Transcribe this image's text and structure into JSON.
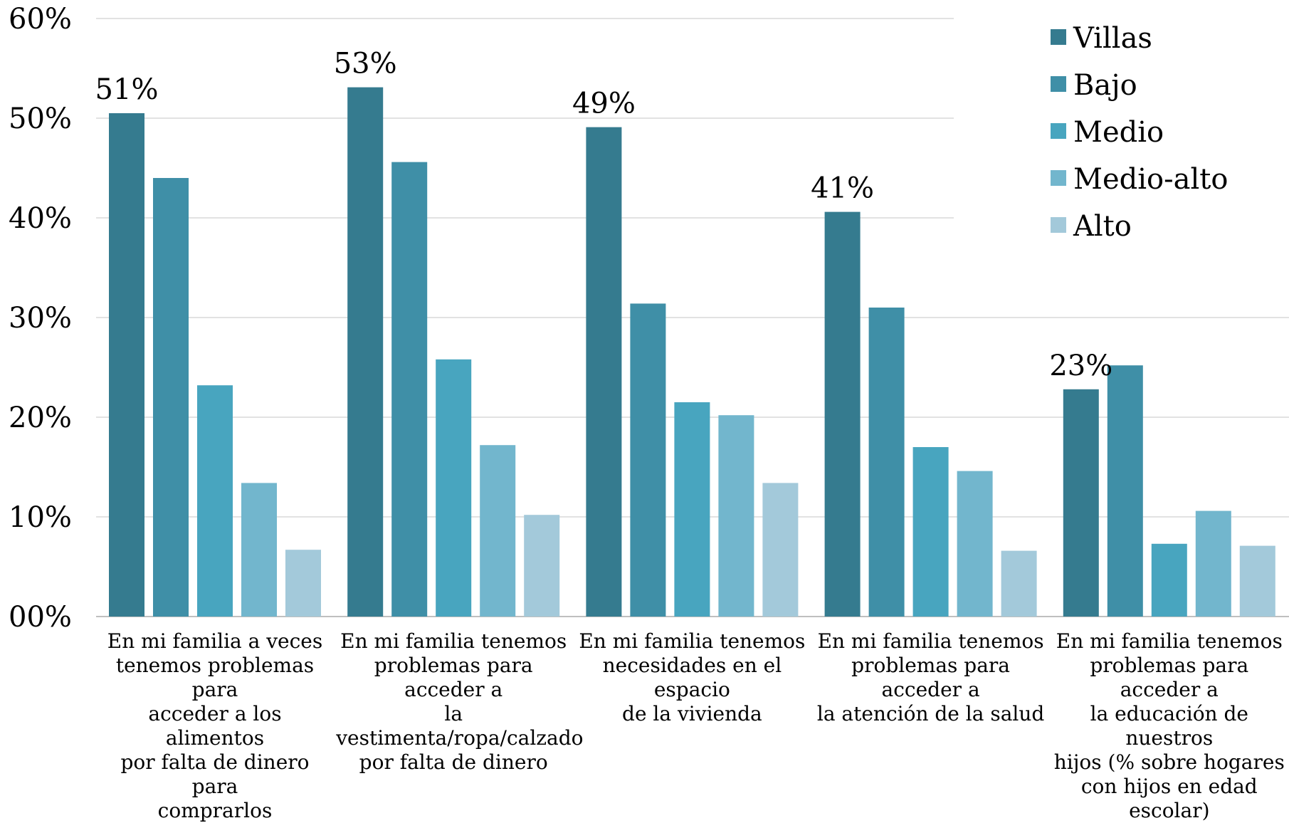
{
  "chart_data": {
    "type": "bar",
    "categories": [
      "En mi familia a veces\ntenemos problemas para\nacceder a los alimentos\npor falta de dinero para\ncomprarlos",
      "En mi familia tenemos\nproblemas para acceder a\nla\nvestimenta/ropa/calzado\npor falta de dinero",
      "En mi familia tenemos\nnecesidades en el espacio\nde la vivienda",
      "En mi familia tenemos\nproblemas para acceder a\nla  atención de la salud",
      "En mi familia tenemos\nproblemas para acceder a\nla educación de nuestros\nhijos (% sobre hogares\ncon hijos en edad escolar)"
    ],
    "series": [
      {
        "name": "Villas",
        "color": "#357b8f",
        "values": [
          50.5,
          53.1,
          49.1,
          40.6,
          22.8
        ]
      },
      {
        "name": "Bajo",
        "color": "#3f8fa7",
        "values": [
          44.0,
          45.6,
          31.4,
          31.0,
          25.2
        ]
      },
      {
        "name": "Medio",
        "color": "#48a5bf",
        "values": [
          23.2,
          25.8,
          21.5,
          17.0,
          7.3
        ]
      },
      {
        "name": "Medio-alto",
        "color": "#72b6cd",
        "values": [
          13.4,
          17.2,
          20.2,
          14.6,
          10.6
        ]
      },
      {
        "name": "Alto",
        "color": "#a3c9da",
        "values": [
          6.7,
          10.2,
          13.4,
          6.6,
          7.1
        ]
      }
    ],
    "data_labels": [
      "51%",
      "53%",
      "49%",
      "41%",
      "23%"
    ],
    "yticks": [
      "00%",
      "10%",
      "20%",
      "30%",
      "40%",
      "50%",
      "60%"
    ],
    "ylim": [
      0,
      60
    ],
    "grid": true,
    "legend_position": "top-right",
    "title": "",
    "xlabel": "",
    "ylabel": ""
  }
}
